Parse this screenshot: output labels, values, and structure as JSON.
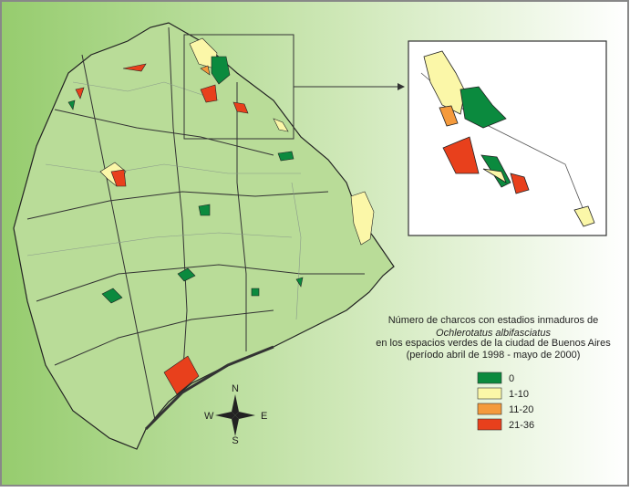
{
  "title": {
    "lines": [
      "Número de charcos con estadios inmaduros de",
      "Ochlerotatus albifasciatus",
      "en los espacios verdes de la ciudad de Buenos Aires",
      "(período abril de 1998 - mayo de 2000)"
    ]
  },
  "legend": [
    {
      "label": "0",
      "color": "#0b8a3e"
    },
    {
      "label": "1-10",
      "color": "#fbf7a8"
    },
    {
      "label": "11-20",
      "color": "#f49a3c"
    },
    {
      "label": "21-36",
      "color": "#e8401c"
    }
  ],
  "compass": {
    "n": "N",
    "s": "S",
    "e": "E",
    "w": "W"
  }
}
